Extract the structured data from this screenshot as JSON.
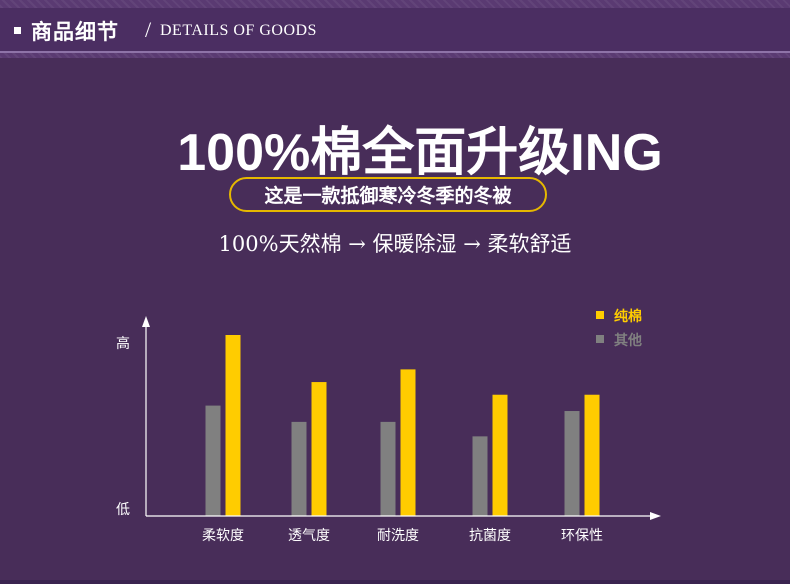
{
  "header": {
    "title_cn": "商品细节",
    "separator": "/",
    "title_en": "DETAILS OF GOODS"
  },
  "headline": "100%棉全面升级ING",
  "pill_text": "这是一款抵御寒冷冬季的冬被",
  "subline": "100%天然棉 → 保暖除湿 → 柔软舒适",
  "colors": {
    "background": "#482d59",
    "cotton": "#ffcc00",
    "other": "#808080",
    "pill_border": "#e6b800"
  },
  "chart_data": {
    "type": "bar",
    "categories": [
      "柔软度",
      "透气度",
      "耐洗度",
      "抗菌度",
      "环保性"
    ],
    "series": [
      {
        "name": "其他",
        "color": "#808080",
        "values": [
          0.61,
          0.52,
          0.52,
          0.44,
          0.58
        ]
      },
      {
        "name": "纯棉",
        "color": "#ffcc00",
        "values": [
          1.0,
          0.74,
          0.81,
          0.67,
          0.67
        ]
      }
    ],
    "y_high_label": "高",
    "y_low_label": "低",
    "ylim": [
      0,
      1.05
    ],
    "legend": [
      {
        "label": "纯棉",
        "color": "#ffcc00"
      },
      {
        "label": "其他",
        "color": "#808080"
      }
    ],
    "legend_position": "top-right",
    "grid": false
  }
}
